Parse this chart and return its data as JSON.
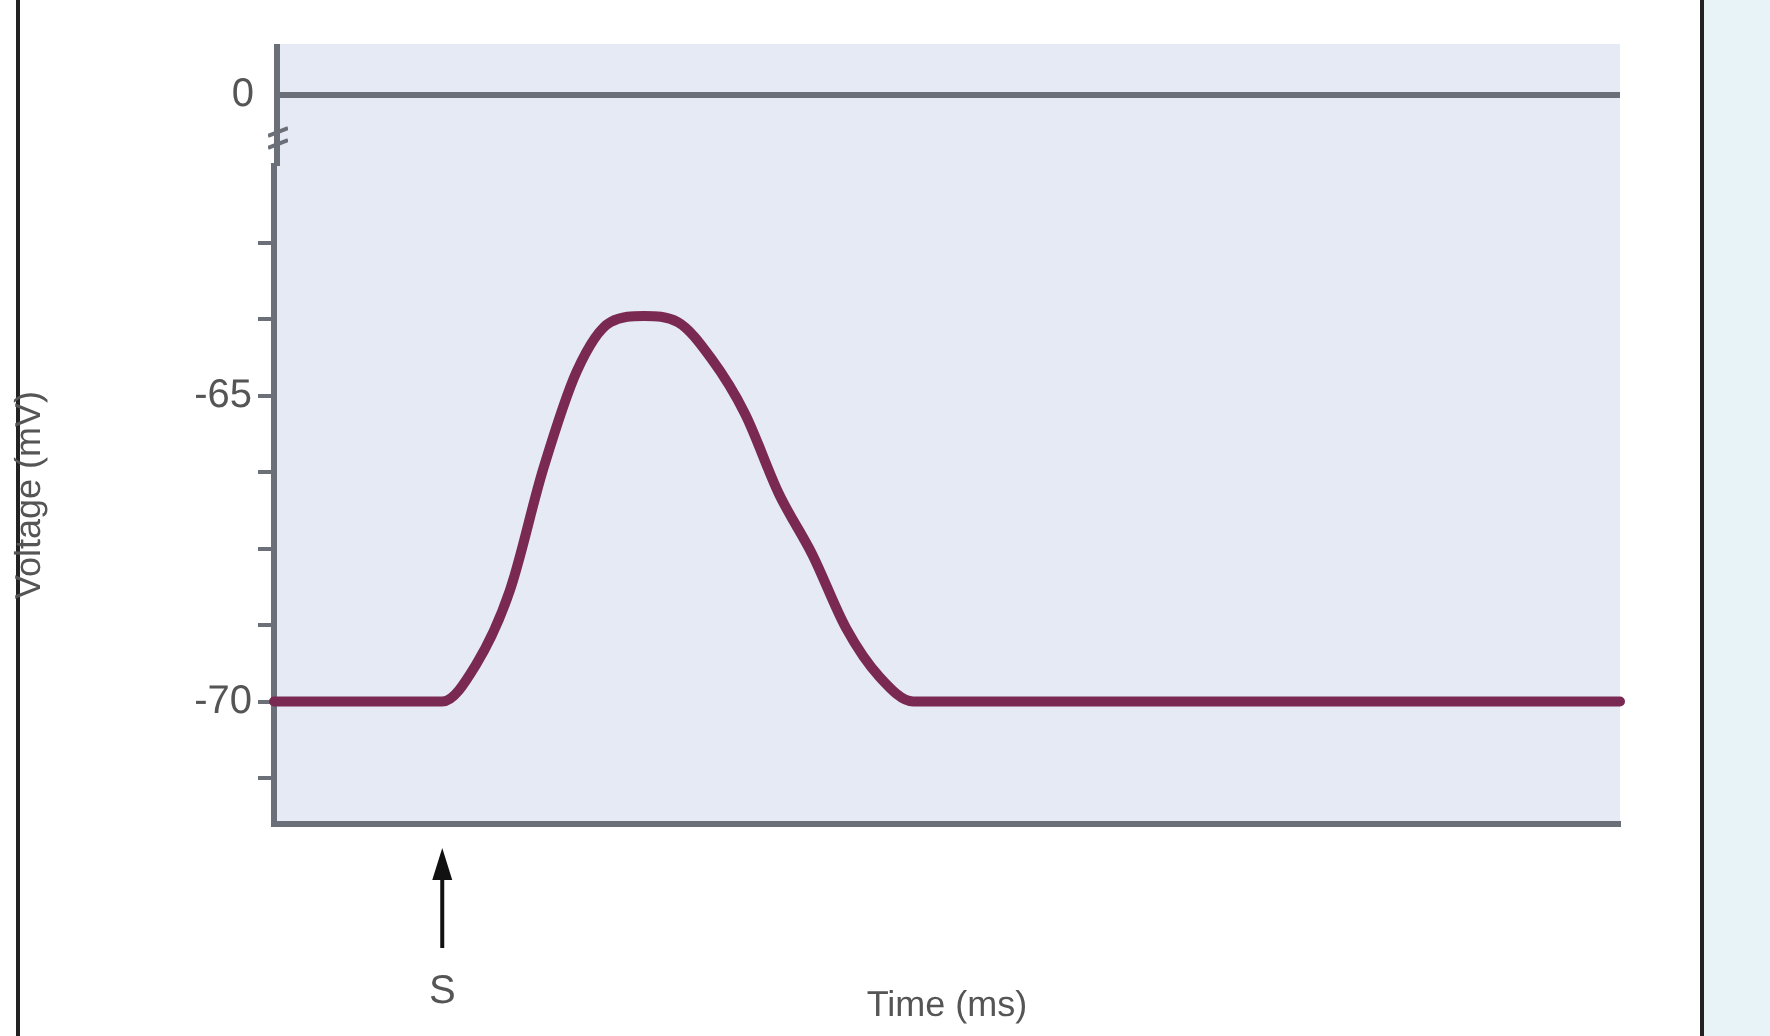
{
  "chart_data": {
    "type": "line",
    "xlabel": "Time (ms)",
    "ylabel": "Voltage (mV)",
    "categories": [
      null,
      null,
      null,
      null,
      null,
      null,
      null,
      null,
      null,
      null,
      null,
      null,
      null,
      null,
      null,
      null,
      null,
      null,
      null,
      null,
      null,
      null,
      null,
      null,
      null,
      null,
      null,
      null,
      null,
      null,
      null,
      null,
      null,
      null,
      null,
      null,
      null,
      null,
      null,
      null,
      null
    ],
    "series": [
      {
        "color": "#7a2a52",
        "values": [
          -70,
          -70,
          -70,
          -70,
          -70,
          -70,
          -69.4,
          -68.2,
          -66.2,
          -64.6,
          -63.8,
          -63.7,
          -63.8,
          -64.4,
          -65.3,
          -66.6,
          -67.6,
          -68.8,
          -69.6,
          -70,
          -70,
          -70,
          -70,
          -70,
          -70,
          -70,
          -70,
          -70,
          -70,
          -70,
          -70,
          -70,
          -70,
          -70,
          -70,
          -70,
          -70,
          -70,
          -70,
          -70,
          -70
        ]
      }
    ],
    "ylim": [
      -72,
      -61.25
    ],
    "yticks": [
      {
        "value": -71.25,
        "label": null
      },
      -70,
      {
        "value": -68.75,
        "label": null
      },
      {
        "value": -67.5,
        "label": null
      },
      {
        "value": -66.25,
        "label": null
      },
      -65,
      {
        "value": -63.75,
        "label": null
      },
      {
        "value": -62.5,
        "label": null
      }
    ],
    "annotations": [
      "0",
      "S"
    ],
    "grid": false,
    "legend": false,
    "marker": "none",
    "line_style": "solid"
  }
}
